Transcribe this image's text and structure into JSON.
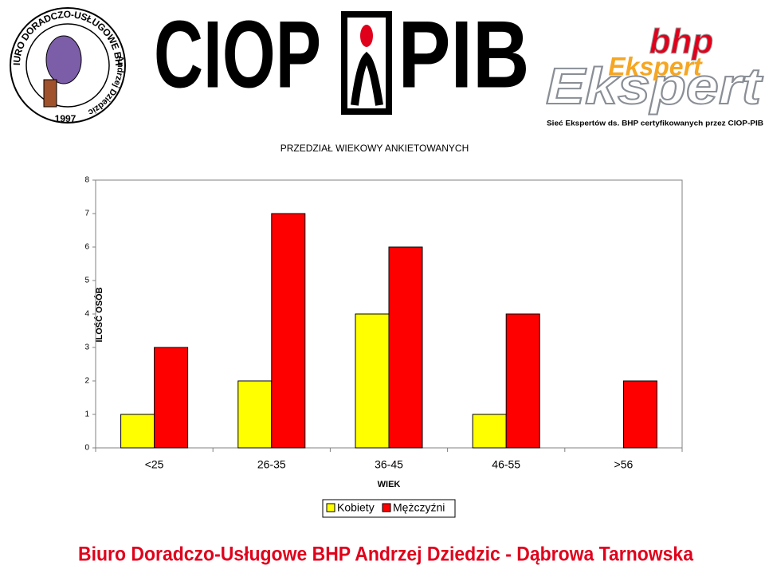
{
  "header": {
    "left_logo": {
      "ring_top": "BIURO DORADCZO-USŁUGOWE BHP",
      "ring_bottom": "Andrzej Dziedzic",
      "year": "1997"
    },
    "center_logo": {
      "left": "CIOP",
      "right": "PIB"
    },
    "right_logo": {
      "top": "bhp",
      "name": "Ekspert",
      "caption": "Sieć Ekspertów ds. BHP certyfikowanych przez CIOP-PIB"
    }
  },
  "chart_data": {
    "type": "bar",
    "title": "PRZEDZIAŁ WIEKOWY ANKIETOWANYCH",
    "x_label": "WIEK",
    "y_label": "ILOŚĆ OSÓB",
    "categories": [
      "<25",
      "26-35",
      "36-45",
      "46-55",
      ">56"
    ],
    "series": [
      {
        "name": "Kobiety",
        "color": "#ffff00",
        "values": [
          1,
          2,
          4,
          1,
          0
        ]
      },
      {
        "name": "Mężczyźni",
        "color": "#ff0000",
        "values": [
          3,
          7,
          6,
          4,
          2
        ]
      }
    ],
    "ylim": [
      0,
      8
    ],
    "yticks": [
      0,
      1,
      2,
      3,
      4,
      5,
      6,
      7,
      8
    ],
    "grid": false,
    "legend": "bottom"
  },
  "footer": "Biuro Doradczo-Usługowe BHP Andrzej Dziedzic - Dąbrowa Tarnowska"
}
